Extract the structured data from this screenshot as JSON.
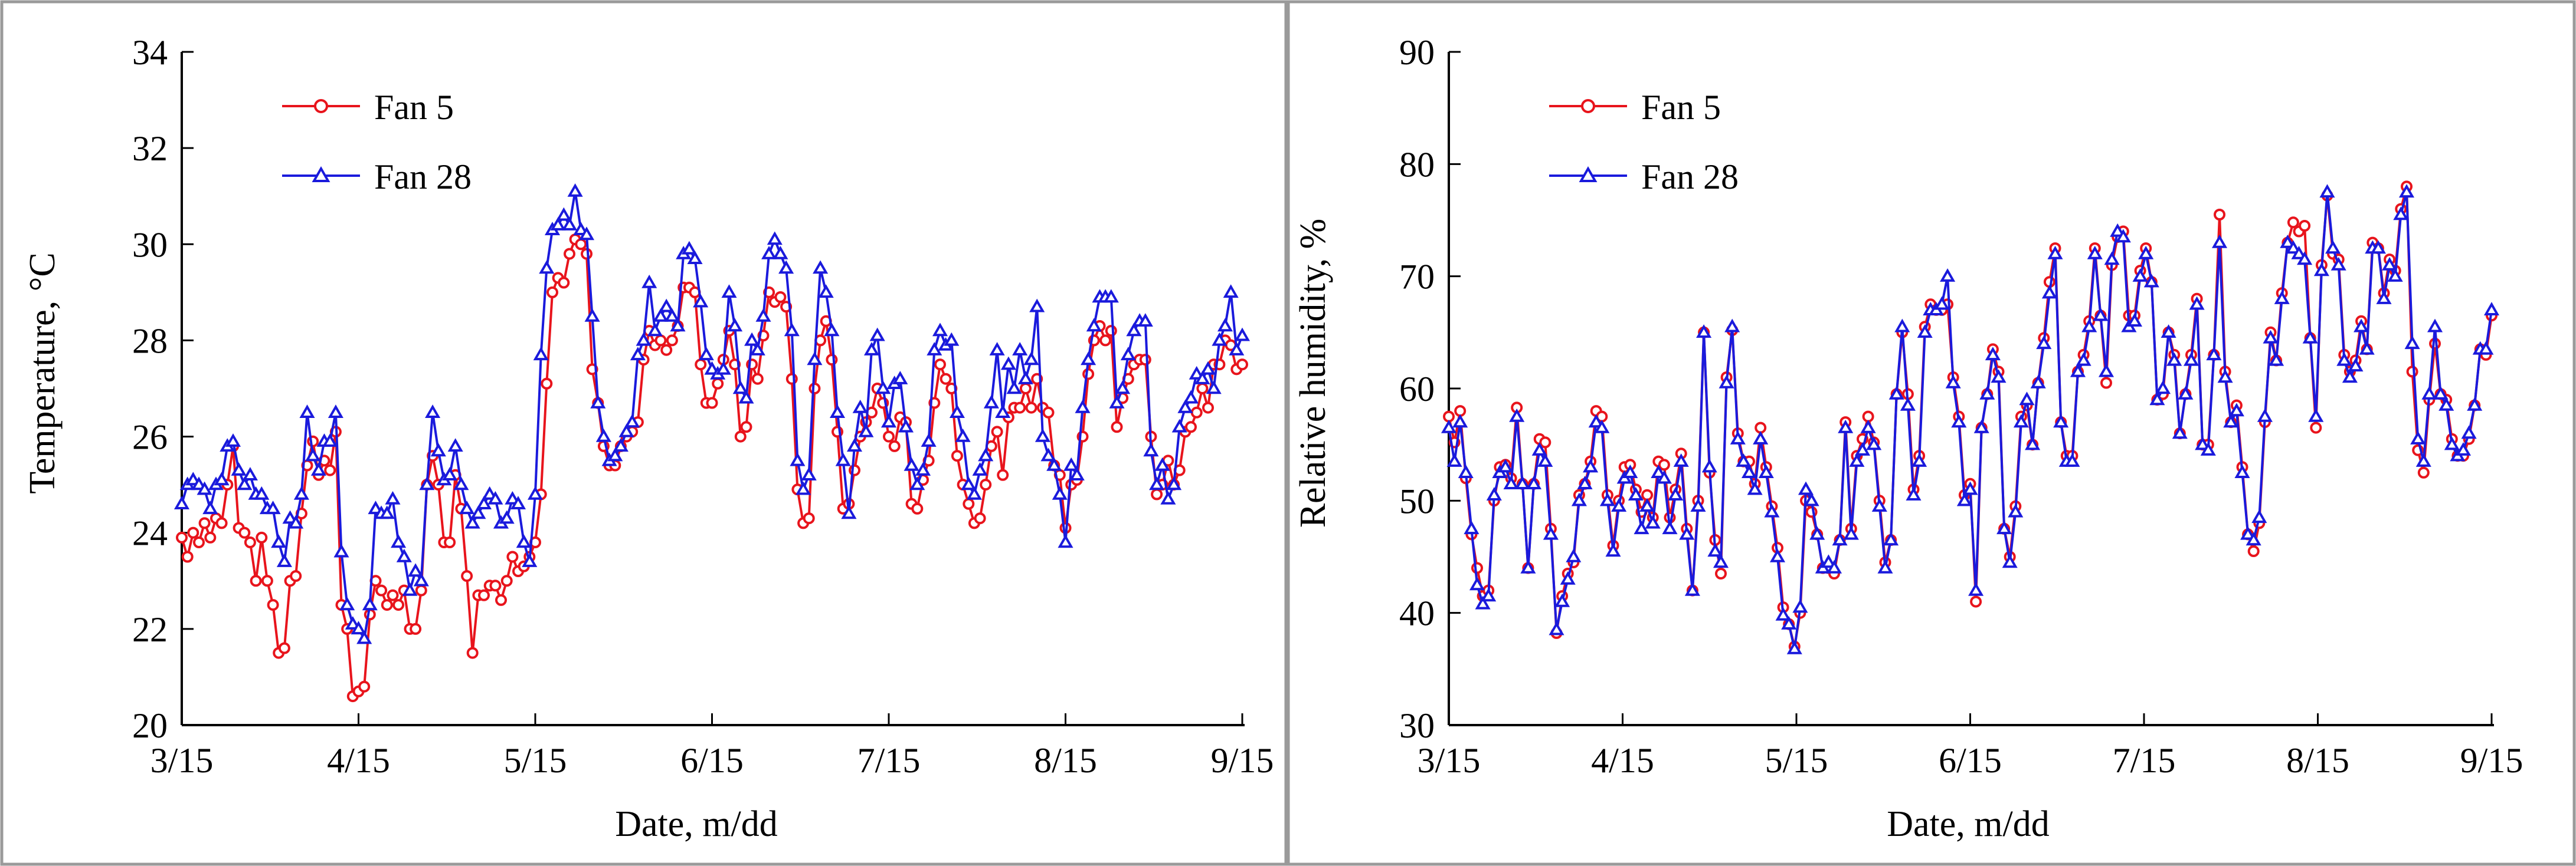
{
  "chart_data": [
    {
      "type": "line",
      "xlabel": "Date, m/dd",
      "ylabel": "Temperature, °C",
      "ylim": [
        20,
        34
      ],
      "yticks": [
        "20",
        "22",
        "24",
        "26",
        "28",
        "30",
        "32",
        "34"
      ],
      "xticks": [
        "3/15",
        "4/15",
        "5/15",
        "6/15",
        "7/15",
        "8/15",
        "9/15"
      ],
      "x_start_label": "3/15",
      "x_days_span": 184,
      "legend_position": "top-left",
      "series": [
        {
          "name": "Fan 5",
          "color": "#e8141c",
          "marker": "circle",
          "values": [
            23.9,
            23.5,
            24.0,
            23.8,
            24.2,
            23.9,
            24.3,
            24.2,
            25.0,
            25.8,
            24.1,
            24.0,
            23.8,
            23.0,
            23.9,
            23.0,
            22.5,
            21.5,
            21.6,
            23.0,
            23.1,
            24.4,
            25.4,
            25.9,
            25.2,
            25.5,
            25.3,
            26.1,
            22.5,
            22.0,
            20.6,
            20.7,
            20.8,
            22.3,
            23.0,
            22.8,
            22.5,
            22.7,
            22.5,
            22.8,
            22.0,
            22.0,
            22.8,
            25.0,
            25.6,
            25.0,
            23.8,
            23.8,
            25.2,
            24.5,
            23.1,
            21.5,
            22.7,
            22.7,
            22.9,
            22.9,
            22.6,
            23.0,
            23.5,
            23.2,
            23.3,
            23.5,
            23.8,
            24.8,
            27.1,
            29.0,
            29.3,
            29.2,
            29.8,
            30.1,
            30.0,
            29.8,
            27.4,
            26.7,
            25.8,
            25.4,
            25.4,
            25.8,
            26.0,
            26.1,
            26.3,
            27.6,
            28.2,
            27.9,
            28.0,
            27.8,
            28.0,
            28.3,
            29.1,
            29.1,
            29.0,
            27.5,
            26.7,
            26.7,
            27.1,
            27.6,
            28.2,
            27.5,
            26.0,
            26.2,
            27.5,
            27.2,
            28.1,
            29.0,
            28.8,
            28.9,
            28.7,
            27.2,
            24.9,
            24.2,
            24.3,
            27.0,
            28.0,
            28.4,
            27.6,
            26.1,
            24.5,
            24.6,
            25.3,
            26.0,
            26.3,
            26.5,
            27.0,
            26.7,
            26.0,
            25.8,
            26.4,
            26.3,
            24.6,
            24.5,
            25.1,
            25.5,
            26.7,
            27.5,
            27.2,
            27.0,
            25.6,
            25.0,
            24.6,
            24.2,
            24.3,
            25.0,
            25.8,
            26.1,
            25.2,
            26.4,
            26.6,
            26.6,
            27.0,
            26.6,
            27.2,
            26.6,
            26.5,
            25.4,
            25.2,
            24.1,
            25.0,
            25.1,
            26.0,
            27.3,
            28.0,
            28.3,
            28.0,
            28.2,
            26.2,
            26.8,
            27.2,
            27.5,
            27.6,
            27.6,
            26.0,
            24.8,
            25.0,
            25.5,
            25.0,
            25.3,
            26.1,
            26.2,
            26.5,
            27.0,
            26.6,
            27.5,
            27.5,
            28.0,
            27.9,
            27.4,
            27.5
          ]
        },
        {
          "name": "Fan 28",
          "color": "#1a1adc",
          "marker": "triangle",
          "values": [
            24.6,
            25.0,
            25.1,
            25.0,
            24.9,
            24.5,
            25.0,
            25.1,
            25.8,
            25.9,
            25.3,
            25.0,
            25.2,
            24.8,
            24.8,
            24.5,
            24.5,
            23.8,
            23.4,
            24.3,
            24.2,
            24.8,
            26.5,
            25.6,
            25.3,
            25.9,
            25.9,
            26.5,
            23.6,
            22.5,
            22.1,
            22.0,
            21.8,
            22.5,
            24.5,
            24.4,
            24.4,
            24.7,
            23.8,
            23.5,
            22.8,
            23.2,
            23.0,
            25.0,
            26.5,
            25.7,
            25.1,
            25.2,
            25.8,
            25.0,
            24.5,
            24.2,
            24.4,
            24.6,
            24.8,
            24.7,
            24.2,
            24.3,
            24.7,
            24.6,
            23.8,
            23.4,
            24.8,
            27.7,
            29.5,
            30.3,
            30.4,
            30.6,
            30.4,
            31.1,
            30.3,
            30.2,
            28.5,
            26.7,
            26.0,
            25.5,
            25.6,
            25.8,
            26.1,
            26.3,
            27.7,
            28.0,
            29.2,
            28.2,
            28.5,
            28.7,
            28.5,
            28.3,
            29.8,
            29.9,
            29.7,
            28.8,
            27.7,
            27.4,
            27.3,
            27.4,
            29.0,
            28.3,
            27.0,
            26.8,
            28.0,
            27.8,
            28.5,
            29.8,
            30.1,
            29.8,
            29.5,
            28.2,
            25.5,
            24.9,
            25.2,
            27.6,
            29.5,
            29.0,
            28.2,
            26.5,
            25.5,
            24.4,
            25.8,
            26.6,
            26.1,
            27.8,
            28.1,
            27.0,
            26.3,
            27.1,
            27.2,
            26.2,
            25.4,
            25.0,
            25.3,
            25.9,
            27.8,
            28.2,
            27.9,
            28.0,
            26.5,
            26.0,
            25.0,
            24.8,
            25.3,
            25.6,
            26.7,
            27.8,
            26.5,
            27.5,
            27.0,
            27.8,
            27.2,
            27.6,
            28.7,
            26.0,
            25.6,
            25.4,
            24.8,
            23.8,
            25.4,
            25.2,
            26.6,
            27.6,
            28.3,
            28.9,
            28.9,
            28.9,
            26.7,
            27.0,
            27.7,
            28.2,
            28.4,
            28.4,
            25.7,
            25.0,
            25.4,
            24.7,
            25.0,
            26.2,
            26.6,
            26.8,
            27.3,
            27.2,
            27.4,
            27.0,
            28.0,
            28.3,
            29.0,
            27.8,
            28.1
          ]
        }
      ]
    },
    {
      "type": "line",
      "xlabel": "Date, m/dd",
      "ylabel": "Relative humidity, %",
      "ylim": [
        30,
        90
      ],
      "yticks": [
        "30",
        "40",
        "50",
        "60",
        "70",
        "80",
        "90"
      ],
      "xticks": [
        "3/15",
        "4/15",
        "5/15",
        "6/15",
        "7/15",
        "8/15",
        "9/15"
      ],
      "x_start_label": "3/15",
      "x_days_span": 184,
      "legend_position": "top-left",
      "series": [
        {
          "name": "Fan 5",
          "color": "#e8141c",
          "marker": "circle",
          "values": [
            57.5,
            55.2,
            58.0,
            52.0,
            47.0,
            44.0,
            41.5,
            42.0,
            50.0,
            53.0,
            53.2,
            52.0,
            58.3,
            51.5,
            44.0,
            51.5,
            55.5,
            55.2,
            47.5,
            38.2,
            41.5,
            43.5,
            44.5,
            50.5,
            51.5,
            53.5,
            58.0,
            57.5,
            50.5,
            46.0,
            50.0,
            53.0,
            53.2,
            51.0,
            49.0,
            50.5,
            48.5,
            53.5,
            53.2,
            48.5,
            51.0,
            54.2,
            47.5,
            42.0,
            50.0,
            65.0,
            52.5,
            46.5,
            43.5,
            61.0,
            65.2,
            56.0,
            53.5,
            53.5,
            51.5,
            56.5,
            53.0,
            49.5,
            45.8,
            40.5,
            39.0,
            37.0,
            40.0,
            50.0,
            49.0,
            47.0,
            44.0,
            44.0,
            43.5,
            46.5,
            57.0,
            47.5,
            54.0,
            55.5,
            57.5,
            55.2,
            50.0,
            44.5,
            46.5,
            59.5,
            65.0,
            59.5,
            51.0,
            54.0,
            65.5,
            67.5,
            67.0,
            67.0,
            67.5,
            61.0,
            57.5,
            50.5,
            51.5,
            41.0,
            56.5,
            59.5,
            63.5,
            61.5,
            47.5,
            45.0,
            49.5,
            57.5,
            58.5,
            55.0,
            60.5,
            64.5,
            69.5,
            72.5,
            57.0,
            54.0,
            54.0,
            61.5,
            63.0,
            66.0,
            72.5,
            66.5,
            60.5,
            71.0,
            73.5,
            74.0,
            66.5,
            66.5,
            70.5,
            72.5,
            69.5,
            59.0,
            59.5,
            65.0,
            63.0,
            56.0,
            59.5,
            63.0,
            68.0,
            55.0,
            55.0,
            63.0,
            75.5,
            61.5,
            57.0,
            58.5,
            53.0,
            47.0,
            45.5,
            48.0,
            57.0,
            65.0,
            62.5,
            68.5,
            73.0,
            74.8,
            74.0,
            74.5,
            64.5,
            56.5,
            71.0,
            77.2,
            72.0,
            71.5,
            63.0,
            61.5,
            62.5,
            66.0,
            63.5,
            73.0,
            72.5,
            68.5,
            71.5,
            70.5,
            76.0,
            78.0,
            61.5,
            54.5,
            52.5,
            59.0,
            64.0,
            59.5,
            59.0,
            55.5,
            54.0,
            54.0,
            55.5,
            58.5,
            63.5,
            63.0,
            66.5
          ]
        },
        {
          "name": "Fan 28",
          "color": "#1a1adc",
          "marker": "triangle",
          "values": [
            56.5,
            53.5,
            57.0,
            52.5,
            47.5,
            42.5,
            40.8,
            41.5,
            50.5,
            52.5,
            53.0,
            51.5,
            57.5,
            51.5,
            44.0,
            51.5,
            54.5,
            53.5,
            47.0,
            38.5,
            41.0,
            43.0,
            45.0,
            50.0,
            51.5,
            53.0,
            57.0,
            56.5,
            50.0,
            45.5,
            49.5,
            52.0,
            52.5,
            50.5,
            47.5,
            49.5,
            48.0,
            52.5,
            52.0,
            47.5,
            50.5,
            53.5,
            47.0,
            42.0,
            49.5,
            65.0,
            53.0,
            45.5,
            44.5,
            60.5,
            65.5,
            55.5,
            53.5,
            52.5,
            51.0,
            55.5,
            52.5,
            49.0,
            45.0,
            39.8,
            39.0,
            36.8,
            40.5,
            51.0,
            50.0,
            47.0,
            44.0,
            44.5,
            44.0,
            46.5,
            56.5,
            47.0,
            53.5,
            54.5,
            56.5,
            55.0,
            49.5,
            44.0,
            46.5,
            59.5,
            65.5,
            58.5,
            50.5,
            53.5,
            65.0,
            67.0,
            67.0,
            67.5,
            70.0,
            60.5,
            57.0,
            50.0,
            51.0,
            42.0,
            56.5,
            59.5,
            63.0,
            61.0,
            47.5,
            44.5,
            49.0,
            57.0,
            59.0,
            55.0,
            60.5,
            64.0,
            68.5,
            72.0,
            57.0,
            53.5,
            53.5,
            61.5,
            62.5,
            65.5,
            72.0,
            66.5,
            61.5,
            71.5,
            74.0,
            73.5,
            65.5,
            66.0,
            70.0,
            72.0,
            69.5,
            59.0,
            60.0,
            65.0,
            62.5,
            56.0,
            59.5,
            62.5,
            67.5,
            55.0,
            54.5,
            63.0,
            73.0,
            61.0,
            57.0,
            58.0,
            52.5,
            47.0,
            46.5,
            48.5,
            57.5,
            64.5,
            62.5,
            68.0,
            73.0,
            72.5,
            72.0,
            71.5,
            64.5,
            57.5,
            70.5,
            77.5,
            72.5,
            71.0,
            62.5,
            61.0,
            62.0,
            65.5,
            63.5,
            72.5,
            72.5,
            68.0,
            71.0,
            70.0,
            75.5,
            77.5,
            64.0,
            55.5,
            53.5,
            59.5,
            65.5,
            59.5,
            58.5,
            55.0,
            54.0,
            54.5,
            56.0,
            58.5,
            63.5,
            63.5,
            67.0
          ]
        }
      ]
    }
  ]
}
